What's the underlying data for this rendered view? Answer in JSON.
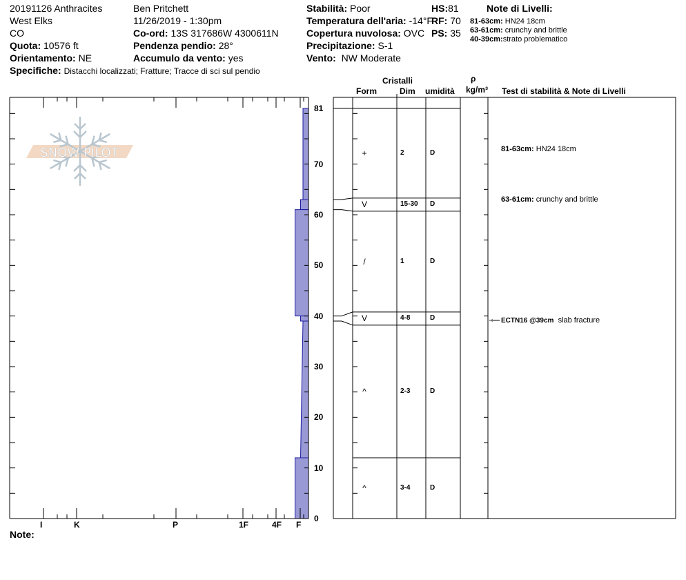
{
  "header": {
    "col1": {
      "title": "20191126 Anthracites",
      "range": "West Elks",
      "state": "CO",
      "elevation_label": "Quota:",
      "elevation": "10576 ft",
      "aspect_label": "Orientamento:",
      "aspect": "NE",
      "specifics_label": "Specifiche:",
      "specifics": "Distacchi localizzati;  Fratture;  Tracce di sci sul pendio"
    },
    "col2": {
      "observer": "Ben Pritchett",
      "datetime": "11/26/2019 - 1:30pm",
      "coord_label": "Co-ord:",
      "coord": "13S 317686W 4300611N",
      "slope_label": "Pendenza pendio:",
      "slope": "28°",
      "wind_loading_label": "Accumulo da vento:",
      "wind_loading": "yes"
    },
    "col3": {
      "stability_label": "Stabilità:",
      "stability": "Poor",
      "air_temp_label": "Temperatura dell'aria:",
      "air_temp": "-14°F",
      "sky_label": "Copertura nuvolosa:",
      "sky": "OVC",
      "precip_label": "Precipitazione:",
      "precip": "S-1",
      "wind_label": "Vento:",
      "wind": "NW Moderate"
    },
    "col4": {
      "hs_label": "HS:",
      "hs": "81",
      "rf_label": "RF:",
      "rf": "70",
      "ps_label": "PS:",
      "ps": "35"
    },
    "layer_notes": {
      "title": "Note di Livelli:",
      "items": [
        {
          "range": "81-63cm:",
          "text": "HN24 18cm"
        },
        {
          "range": "63-61cm:",
          "text": "crunchy and brittle"
        },
        {
          "range": "40-39cm:",
          "text": "strato problematico"
        }
      ]
    }
  },
  "logo": {
    "text": "SNOW PILOT",
    "colors": {
      "band": "#f3d9c4",
      "flake": "#b9c6cf"
    }
  },
  "columns": {
    "crystals": "Cristalli",
    "form": "Form",
    "dim": "Dim",
    "moisture": "umidità",
    "rho": "ρ",
    "density_unit": "kg/m³",
    "tests_notes": "Test di stabilità & Note di Livelli"
  },
  "hardness_axis": {
    "labels": [
      "I",
      "K",
      "P",
      "1F",
      "4F",
      "F"
    ]
  },
  "depth_axis": {
    "labels": [
      "81",
      "70",
      "60",
      "50",
      "40",
      "30",
      "20",
      "10",
      "0"
    ],
    "max": 81,
    "min": 0
  },
  "colors": {
    "hardness_fill": "#9999d6",
    "hardness_stroke": "#1a1aa0"
  },
  "layers": [
    {
      "top": 81,
      "bottom": 63,
      "hardness_top": "F-",
      "hardness_bottom": "F-",
      "form": "+",
      "form_icon": "precipitation-particles-icon",
      "size": "2",
      "moisture": "D"
    },
    {
      "top": 63,
      "bottom": 61,
      "hardness_top": "F",
      "hardness_bottom": "F",
      "form": "V",
      "form_icon": "surface-hoar-icon",
      "size": "15-30",
      "moisture": "D"
    },
    {
      "top": 61,
      "bottom": 40,
      "hardness_top": "F+",
      "hardness_bottom": "F+",
      "form": "/",
      "form_icon": "decomposing-particles-icon",
      "size": "1",
      "moisture": "D"
    },
    {
      "top": 40,
      "bottom": 39,
      "hardness_top": "F",
      "hardness_bottom": "F",
      "form": "V",
      "form_icon": "surface-hoar-icon",
      "size": "4-8",
      "moisture": "D"
    },
    {
      "top": 39,
      "bottom": 12,
      "hardness_top": "F-",
      "hardness_bottom": "F",
      "form": "^",
      "form_icon": "depth-hoar-icon",
      "size": "2-3",
      "moisture": "D"
    },
    {
      "top": 12,
      "bottom": 0,
      "hardness_top": "F+",
      "hardness_bottom": "F+",
      "form": "^",
      "form_icon": "hollow-depth-hoar-icon",
      "size": "3-4",
      "moisture": "D"
    }
  ],
  "profile_notes": [
    {
      "depth": 72,
      "range": "81-63cm:",
      "text": "HN24 18cm"
    },
    {
      "depth": 62,
      "range": "63-61cm:",
      "text": "crunchy and brittle"
    }
  ],
  "stability_tests": [
    {
      "depth": 39,
      "result": "ECTN16 @39cm",
      "text": "slab fracture"
    }
  ],
  "footer": {
    "note_label": "Note:"
  }
}
